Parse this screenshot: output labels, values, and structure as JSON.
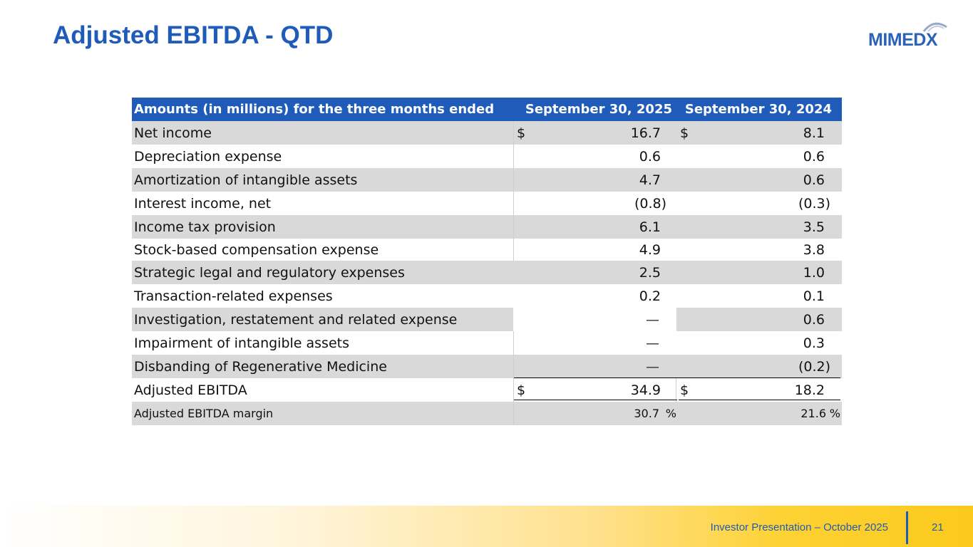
{
  "slide": {
    "title": "Adjusted EBITDA - QTD",
    "logo_text": "MIMEDX",
    "footer_text": "Investor Presentation – October 2025",
    "page_number": "21"
  },
  "colors": {
    "brand_blue": "#1F5BB8",
    "row_gray": "#D9D9D9",
    "footer_gold": "#FCCA1C"
  },
  "table": {
    "header": {
      "label": "Amounts (in millions) for the three months ended",
      "col1": "September 30, 2025",
      "col2": "September 30, 2024"
    },
    "rows": [
      {
        "label": "Net income",
        "dollar1": "$",
        "v1": "16.7",
        "dollar2": "$",
        "v2": "8.1"
      },
      {
        "label": "Depreciation expense",
        "v1": "0.6",
        "v2": "0.6"
      },
      {
        "label": "Amortization of intangible assets",
        "v1": "4.7",
        "v2": "0.6"
      },
      {
        "label": "Interest income, net",
        "v1": "(0.8)",
        "v2": "(0.3)"
      },
      {
        "label": "Income tax provision",
        "v1": "6.1",
        "v2": "3.5"
      },
      {
        "label": "Stock-based compensation expense",
        "v1": "4.9",
        "v2": "3.8"
      },
      {
        "label": "Strategic legal and regulatory expenses",
        "v1": "2.5",
        "v2": "1.0"
      },
      {
        "label": "Transaction-related expenses",
        "v1": "0.2",
        "v2": "0.1"
      },
      {
        "label": "Investigation, restatement and related expense",
        "v1": "—",
        "v2": "0.6"
      },
      {
        "label": "Impairment of intangible assets",
        "v1": "—",
        "v2": "0.3"
      },
      {
        "label": "Disbanding of Regenerative Medicine",
        "v1": "—",
        "v2": "(0.2)"
      },
      {
        "label": "Adjusted EBITDA",
        "dollar1": "$",
        "v1": "34.9",
        "dollar2": "$",
        "v2": "18.2"
      }
    ],
    "margin_row": {
      "label": "Adjusted EBITDA margin",
      "v1": "30.7",
      "pct1": "%",
      "v2": "21.6",
      "pct2": "%"
    }
  }
}
